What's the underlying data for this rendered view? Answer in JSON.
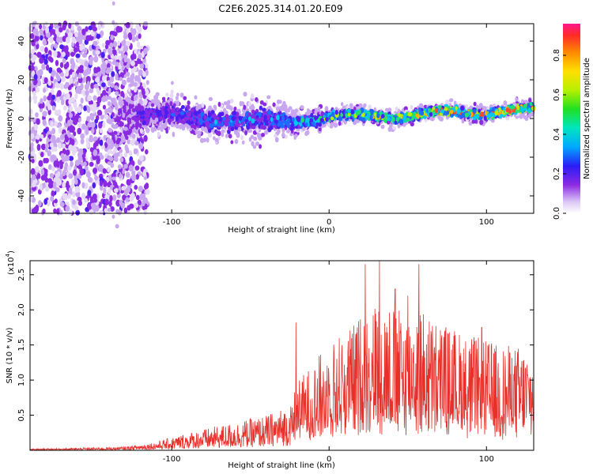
{
  "figure_title": "C2E6.2025.314.01.20.E09",
  "chart_data": [
    {
      "type": "heatmap",
      "name": "spectrogram",
      "xlabel": "Height of straight line (km)",
      "ylabel": "Frequency (Hz)",
      "xlim": [
        -190,
        130
      ],
      "ylim": [
        -49,
        49
      ],
      "xticks": [
        -100,
        0,
        100
      ],
      "xtick_labels": [
        "-100",
        "0",
        "100"
      ],
      "yticks": [
        -40,
        -20,
        0,
        20,
        40
      ],
      "ytick_labels": [
        "-40",
        "-20",
        "0",
        "20",
        "40"
      ],
      "colorbar": {
        "label": "Normalized spectral amplitude",
        "range": [
          0,
          0.96
        ],
        "ticks": [
          0,
          0.2,
          0.4,
          0.6,
          0.8
        ],
        "tick_labels": [
          "0.0",
          "0.2",
          "0.4",
          "0.6",
          "0.8"
        ]
      },
      "description_points": [
        {
          "x": -150,
          "freq_center": 0,
          "spread": 49,
          "amplitude": 0.15
        },
        {
          "x": -120,
          "freq_center": 2,
          "spread": 8,
          "amplitude": 0.35
        },
        {
          "x": -80,
          "freq_center": 0,
          "spread": 7,
          "amplitude": 0.45
        },
        {
          "x": -40,
          "freq_center": -2,
          "spread": 7,
          "amplitude": 0.5
        },
        {
          "x": -15,
          "freq_center": 0,
          "spread": 4,
          "amplitude": 0.65
        },
        {
          "x": 20,
          "freq_center": 1,
          "spread": 3,
          "amplitude": 0.75
        },
        {
          "x": 60,
          "freq_center": 2,
          "spread": 3,
          "amplitude": 0.85
        },
        {
          "x": 110,
          "freq_center": 4,
          "spread": 3,
          "amplitude": 0.9
        }
      ]
    },
    {
      "type": "line",
      "name": "snr",
      "xlabel": "Height of straight line (km)",
      "ylabel": "SNR (10 * v/v)",
      "y_multiplier_label": "(x10",
      "y_multiplier_exp": "4",
      "y_multiplier_close": ")",
      "xlim": [
        -190,
        130
      ],
      "ylim": [
        0,
        2.7
      ],
      "xticks": [
        -100,
        0,
        100
      ],
      "xtick_labels": [
        "-100",
        "0",
        "100"
      ],
      "yticks": [
        0.5,
        1.0,
        1.5,
        2.0,
        2.5
      ],
      "ytick_labels": [
        "0.5",
        "1.0",
        "1.5",
        "2.0",
        "2.5"
      ],
      "color": "#e8302a",
      "envelope": {
        "x": [
          -190,
          -130,
          -110,
          -90,
          -60,
          -40,
          -25,
          -20,
          -10,
          0,
          15,
          25,
          35,
          45,
          55,
          70,
          90,
          110,
          130
        ],
        "y": [
          0.02,
          0.05,
          0.12,
          0.25,
          0.4,
          0.5,
          0.65,
          1.0,
          1.25,
          1.55,
          1.8,
          2.1,
          2.2,
          2.0,
          2.1,
          1.85,
          1.65,
          1.5,
          1.5
        ]
      },
      "peaks": [
        {
          "x": -21,
          "y": 1.82
        },
        {
          "x": 23,
          "y": 2.65
        },
        {
          "x": 32,
          "y": 2.75
        },
        {
          "x": 42,
          "y": 2.3
        },
        {
          "x": 50,
          "y": 2.2
        },
        {
          "x": 57,
          "y": 2.65
        },
        {
          "x": 97,
          "y": 1.75
        }
      ]
    }
  ]
}
